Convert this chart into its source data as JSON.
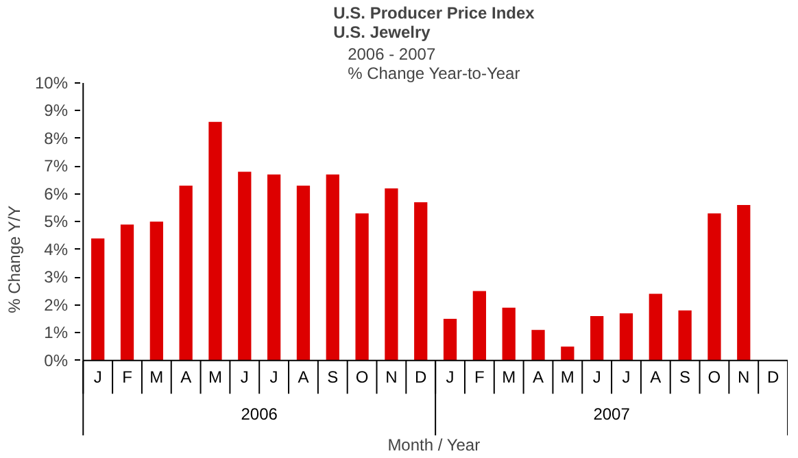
{
  "chart_data": {
    "type": "bar",
    "title": "U.S. Producer Price Index\nU.S. Jewelry",
    "subtitle": "2006 - 2007\n% Change Year-to-Year",
    "xlabel": "Month / Year",
    "ylabel": "% Change Y/Y",
    "annotations": [
      "2006",
      "2007"
    ],
    "categories": [
      "J",
      "F",
      "M",
      "A",
      "M",
      "J",
      "J",
      "A",
      "S",
      "O",
      "N",
      "D",
      "J",
      "F",
      "M",
      "A",
      "M",
      "J",
      "J",
      "A",
      "S",
      "O",
      "N",
      "D"
    ],
    "values": [
      4.4,
      4.9,
      5.0,
      6.3,
      8.6,
      6.8,
      6.7,
      6.3,
      6.7,
      5.3,
      6.2,
      5.7,
      1.5,
      2.5,
      1.9,
      1.1,
      0.5,
      1.6,
      1.7,
      2.4,
      1.8,
      5.3,
      5.6,
      null
    ],
    "color": "#dd0000",
    "ylim": [
      0,
      10
    ],
    "yticks": [
      {
        "value": 0,
        "label": "0%"
      },
      {
        "value": 1,
        "label": "1%"
      },
      {
        "value": 2,
        "label": "2%"
      },
      {
        "value": 3,
        "label": "3%"
      },
      {
        "value": 4,
        "label": "4%"
      },
      {
        "value": 5,
        "label": "5%"
      },
      {
        "value": 6,
        "label": "6%"
      },
      {
        "value": 7,
        "label": "7%"
      },
      {
        "value": 8,
        "label": "8%"
      },
      {
        "value": 9,
        "label": "9%"
      },
      {
        "value": 10,
        "label": "10%"
      }
    ],
    "grid": false
  }
}
